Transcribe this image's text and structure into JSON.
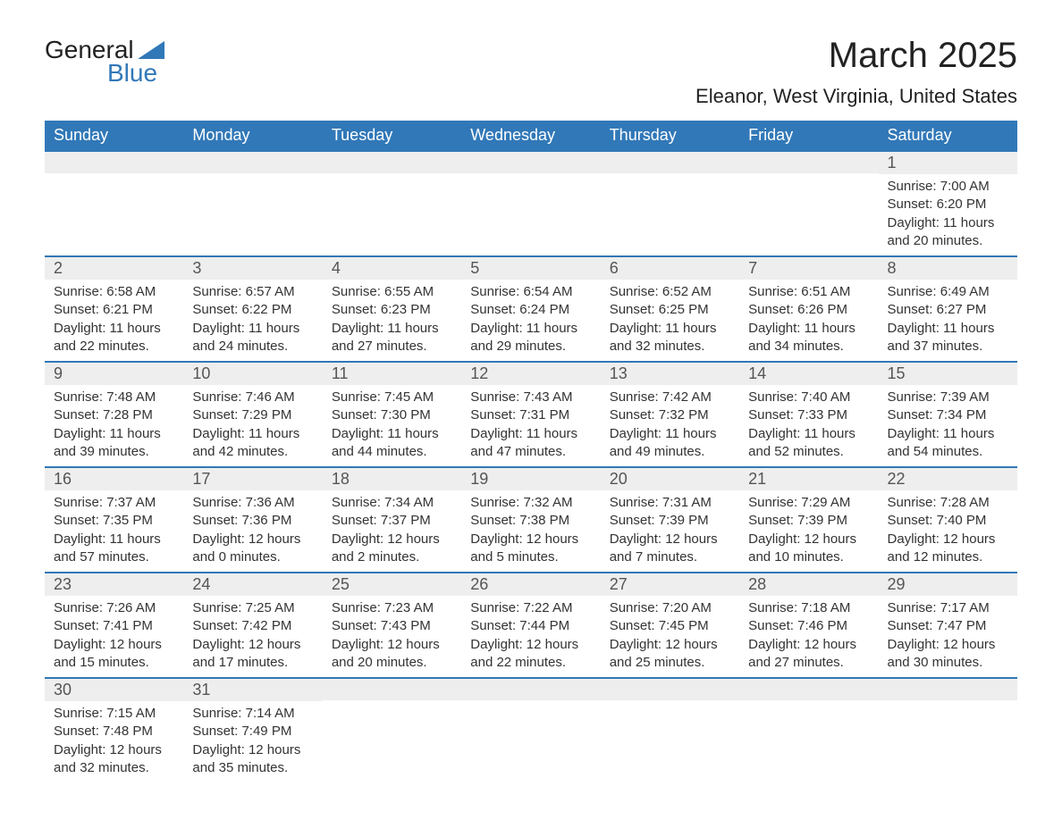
{
  "logo": {
    "word1": "General",
    "word2": "Blue"
  },
  "title": "March 2025",
  "location": "Eleanor, West Virginia, United States",
  "weekdays": [
    "Sunday",
    "Monday",
    "Tuesday",
    "Wednesday",
    "Thursday",
    "Friday",
    "Saturday"
  ],
  "colors": {
    "header_bg": "#3178b8",
    "header_text": "#ffffff",
    "daynum_bg": "#eeeeee",
    "daynum_text": "#555555",
    "cell_border": "#3178b8",
    "body_text": "#333333",
    "logo_accent": "#3178b8",
    "page_bg": "#ffffff"
  },
  "fonts": {
    "title_size_pt": 30,
    "location_size_pt": 17,
    "weekday_size_pt": 14,
    "daynum_size_pt": 14,
    "body_size_pt": 11
  },
  "labels": {
    "sunrise": "Sunrise",
    "sunset": "Sunset",
    "daylight": "Daylight"
  },
  "weeks": [
    [
      null,
      null,
      null,
      null,
      null,
      null,
      {
        "day": 1,
        "sunrise": "7:00 AM",
        "sunset": "6:20 PM",
        "daylight_h": 11,
        "daylight_m": 20
      }
    ],
    [
      {
        "day": 2,
        "sunrise": "6:58 AM",
        "sunset": "6:21 PM",
        "daylight_h": 11,
        "daylight_m": 22
      },
      {
        "day": 3,
        "sunrise": "6:57 AM",
        "sunset": "6:22 PM",
        "daylight_h": 11,
        "daylight_m": 24
      },
      {
        "day": 4,
        "sunrise": "6:55 AM",
        "sunset": "6:23 PM",
        "daylight_h": 11,
        "daylight_m": 27
      },
      {
        "day": 5,
        "sunrise": "6:54 AM",
        "sunset": "6:24 PM",
        "daylight_h": 11,
        "daylight_m": 29
      },
      {
        "day": 6,
        "sunrise": "6:52 AM",
        "sunset": "6:25 PM",
        "daylight_h": 11,
        "daylight_m": 32
      },
      {
        "day": 7,
        "sunrise": "6:51 AM",
        "sunset": "6:26 PM",
        "daylight_h": 11,
        "daylight_m": 34
      },
      {
        "day": 8,
        "sunrise": "6:49 AM",
        "sunset": "6:27 PM",
        "daylight_h": 11,
        "daylight_m": 37
      }
    ],
    [
      {
        "day": 9,
        "sunrise": "7:48 AM",
        "sunset": "7:28 PM",
        "daylight_h": 11,
        "daylight_m": 39
      },
      {
        "day": 10,
        "sunrise": "7:46 AM",
        "sunset": "7:29 PM",
        "daylight_h": 11,
        "daylight_m": 42
      },
      {
        "day": 11,
        "sunrise": "7:45 AM",
        "sunset": "7:30 PM",
        "daylight_h": 11,
        "daylight_m": 44
      },
      {
        "day": 12,
        "sunrise": "7:43 AM",
        "sunset": "7:31 PM",
        "daylight_h": 11,
        "daylight_m": 47
      },
      {
        "day": 13,
        "sunrise": "7:42 AM",
        "sunset": "7:32 PM",
        "daylight_h": 11,
        "daylight_m": 49
      },
      {
        "day": 14,
        "sunrise": "7:40 AM",
        "sunset": "7:33 PM",
        "daylight_h": 11,
        "daylight_m": 52
      },
      {
        "day": 15,
        "sunrise": "7:39 AM",
        "sunset": "7:34 PM",
        "daylight_h": 11,
        "daylight_m": 54
      }
    ],
    [
      {
        "day": 16,
        "sunrise": "7:37 AM",
        "sunset": "7:35 PM",
        "daylight_h": 11,
        "daylight_m": 57
      },
      {
        "day": 17,
        "sunrise": "7:36 AM",
        "sunset": "7:36 PM",
        "daylight_h": 12,
        "daylight_m": 0
      },
      {
        "day": 18,
        "sunrise": "7:34 AM",
        "sunset": "7:37 PM",
        "daylight_h": 12,
        "daylight_m": 2
      },
      {
        "day": 19,
        "sunrise": "7:32 AM",
        "sunset": "7:38 PM",
        "daylight_h": 12,
        "daylight_m": 5
      },
      {
        "day": 20,
        "sunrise": "7:31 AM",
        "sunset": "7:39 PM",
        "daylight_h": 12,
        "daylight_m": 7
      },
      {
        "day": 21,
        "sunrise": "7:29 AM",
        "sunset": "7:39 PM",
        "daylight_h": 12,
        "daylight_m": 10
      },
      {
        "day": 22,
        "sunrise": "7:28 AM",
        "sunset": "7:40 PM",
        "daylight_h": 12,
        "daylight_m": 12
      }
    ],
    [
      {
        "day": 23,
        "sunrise": "7:26 AM",
        "sunset": "7:41 PM",
        "daylight_h": 12,
        "daylight_m": 15
      },
      {
        "day": 24,
        "sunrise": "7:25 AM",
        "sunset": "7:42 PM",
        "daylight_h": 12,
        "daylight_m": 17
      },
      {
        "day": 25,
        "sunrise": "7:23 AM",
        "sunset": "7:43 PM",
        "daylight_h": 12,
        "daylight_m": 20
      },
      {
        "day": 26,
        "sunrise": "7:22 AM",
        "sunset": "7:44 PM",
        "daylight_h": 12,
        "daylight_m": 22
      },
      {
        "day": 27,
        "sunrise": "7:20 AM",
        "sunset": "7:45 PM",
        "daylight_h": 12,
        "daylight_m": 25
      },
      {
        "day": 28,
        "sunrise": "7:18 AM",
        "sunset": "7:46 PM",
        "daylight_h": 12,
        "daylight_m": 27
      },
      {
        "day": 29,
        "sunrise": "7:17 AM",
        "sunset": "7:47 PM",
        "daylight_h": 12,
        "daylight_m": 30
      }
    ],
    [
      {
        "day": 30,
        "sunrise": "7:15 AM",
        "sunset": "7:48 PM",
        "daylight_h": 12,
        "daylight_m": 32
      },
      {
        "day": 31,
        "sunrise": "7:14 AM",
        "sunset": "7:49 PM",
        "daylight_h": 12,
        "daylight_m": 35
      },
      null,
      null,
      null,
      null,
      null
    ]
  ]
}
